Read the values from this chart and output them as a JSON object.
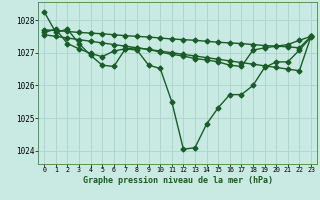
{
  "background_color": "#c8eae2",
  "grid_color": "#a8d4cc",
  "line_color": "#1a5c28",
  "title": "Graphe pression niveau de la mer (hPa)",
  "ylim": [
    1023.6,
    1028.55
  ],
  "xlim": [
    -0.5,
    23.5
  ],
  "yticks": [
    1024,
    1025,
    1026,
    1027,
    1028
  ],
  "xticks": [
    0,
    1,
    2,
    3,
    4,
    5,
    6,
    7,
    8,
    9,
    10,
    11,
    12,
    13,
    14,
    15,
    16,
    17,
    18,
    19,
    20,
    21,
    22,
    23
  ],
  "line_main": [
    1028.25,
    1027.62,
    1027.72,
    1027.28,
    1026.92,
    1026.62,
    1026.58,
    1027.12,
    1027.08,
    1026.62,
    1026.52,
    1025.5,
    1024.05,
    1024.1,
    1024.82,
    1025.32,
    1025.72,
    1025.72,
    1026.0,
    1026.55,
    1026.72,
    1026.72,
    1027.08,
    1027.48
  ],
  "line_upper1": [
    1027.62,
    1027.72,
    1027.28,
    1027.12,
    1026.98,
    1026.88,
    1027.05,
    1027.12,
    1027.15,
    1027.1,
    1027.02,
    1026.95,
    1026.9,
    1026.82,
    1026.78,
    1026.72,
    1026.62,
    1026.58,
    1027.08,
    1027.15,
    1027.2,
    1027.25,
    1027.38,
    1027.5
  ],
  "line_upper2": [
    1027.55,
    1027.5,
    1027.45,
    1027.4,
    1027.35,
    1027.3,
    1027.25,
    1027.2,
    1027.15,
    1027.1,
    1027.05,
    1027.0,
    1026.95,
    1026.9,
    1026.85,
    1026.8,
    1026.75,
    1026.7,
    1026.65,
    1026.6,
    1026.55,
    1026.5,
    1026.45,
    1027.5
  ],
  "line_upper3": [
    1027.7,
    1027.68,
    1027.65,
    1027.62,
    1027.6,
    1027.58,
    1027.55,
    1027.52,
    1027.5,
    1027.48,
    1027.45,
    1027.42,
    1027.4,
    1027.38,
    1027.35,
    1027.32,
    1027.3,
    1027.28,
    1027.25,
    1027.22,
    1027.2,
    1027.18,
    1027.15,
    1027.5
  ]
}
